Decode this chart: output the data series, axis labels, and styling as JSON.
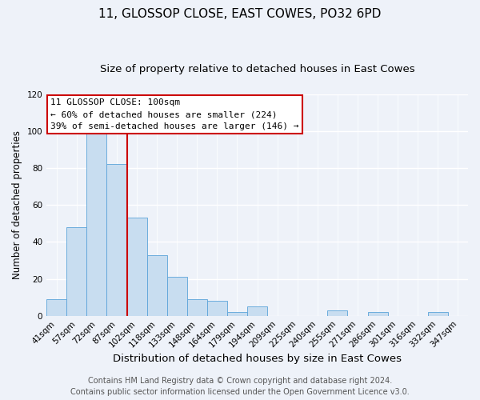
{
  "title": "11, GLOSSOP CLOSE, EAST COWES, PO32 6PD",
  "subtitle": "Size of property relative to detached houses in East Cowes",
  "xlabel": "Distribution of detached houses by size in East Cowes",
  "ylabel": "Number of detached properties",
  "bin_labels": [
    "41sqm",
    "57sqm",
    "72sqm",
    "87sqm",
    "102sqm",
    "118sqm",
    "133sqm",
    "148sqm",
    "164sqm",
    "179sqm",
    "194sqm",
    "209sqm",
    "225sqm",
    "240sqm",
    "255sqm",
    "271sqm",
    "286sqm",
    "301sqm",
    "316sqm",
    "332sqm",
    "347sqm"
  ],
  "bar_heights": [
    9,
    48,
    100,
    82,
    53,
    33,
    21,
    9,
    8,
    2,
    5,
    0,
    0,
    0,
    3,
    0,
    2,
    0,
    0,
    2,
    0
  ],
  "bar_color": "#c8ddf0",
  "bar_edge_color": "#5ba3d9",
  "vline_x_index": 4,
  "vline_color": "#cc0000",
  "ylim": [
    0,
    120
  ],
  "yticks": [
    0,
    20,
    40,
    60,
    80,
    100,
    120
  ],
  "annotation_title": "11 GLOSSOP CLOSE: 100sqm",
  "annotation_line1": "← 60% of detached houses are smaller (224)",
  "annotation_line2": "39% of semi-detached houses are larger (146) →",
  "annotation_box_color": "#ffffff",
  "annotation_border_color": "#cc0000",
  "footer_line1": "Contains HM Land Registry data © Crown copyright and database right 2024.",
  "footer_line2": "Contains public sector information licensed under the Open Government Licence v3.0.",
  "background_color": "#eef2f9",
  "title_fontsize": 11,
  "subtitle_fontsize": 9.5,
  "xlabel_fontsize": 9.5,
  "ylabel_fontsize": 8.5,
  "tick_fontsize": 7.5,
  "annotation_fontsize": 8,
  "footer_fontsize": 7
}
